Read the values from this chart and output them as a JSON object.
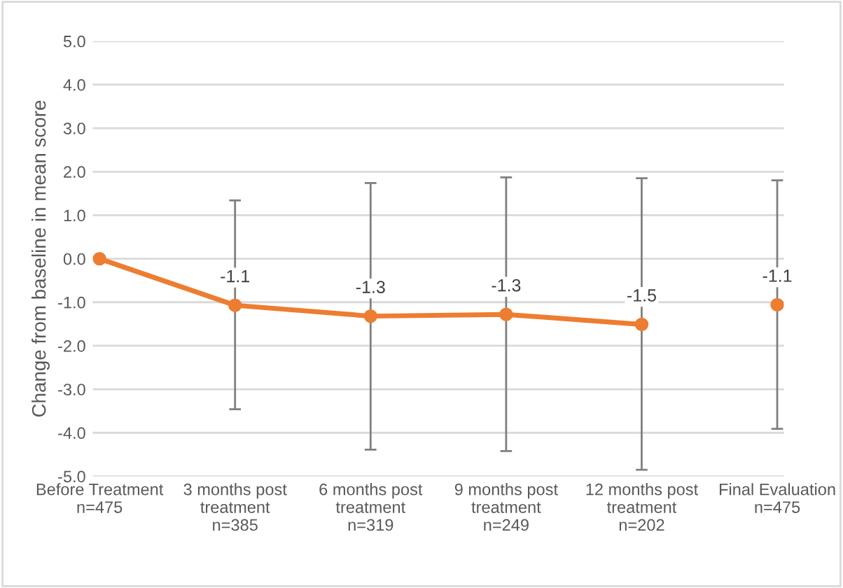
{
  "chart_data": {
    "type": "line",
    "ylabel": "Change from baseline in mean score",
    "categories": [
      "Before Treatment\nn=475",
      "3 months post\ntreatment\nn=385",
      "6 months post\ntreatment\nn=319",
      "9 months post\ntreatment\nn=249",
      "12 months post\ntreatment\nn=202",
      "Final Evaluation\nn=475"
    ],
    "series": [
      {
        "color": "#ed7d31",
        "values": [
          0.0,
          -1.07,
          -1.32,
          -1.28,
          -1.51,
          null
        ],
        "errors": [
          null,
          [
            -3.46,
            1.34
          ],
          [
            -4.39,
            1.74
          ],
          [
            -4.42,
            1.87
          ],
          [
            -4.85,
            1.85
          ],
          null
        ],
        "value_labels": [
          null,
          "-1.1",
          "-1.3",
          "-1.3",
          "-1.5",
          null
        ]
      },
      {
        "color": "#ed7d31",
        "values": [
          null,
          null,
          null,
          null,
          null,
          -1.06
        ],
        "errors": [
          null,
          null,
          null,
          null,
          null,
          [
            -3.91,
            1.8
          ]
        ],
        "value_labels": [
          null,
          null,
          null,
          null,
          null,
          "-1.1"
        ]
      }
    ],
    "ylim": [
      -5.0,
      5.0
    ],
    "yticks": [
      {
        "value": -5,
        "label": "-5.0"
      },
      {
        "value": -4,
        "label": "-4.0"
      },
      {
        "value": -3,
        "label": "-3.0"
      },
      {
        "value": -2,
        "label": "-2.0"
      },
      {
        "value": -1,
        "label": "-1.0"
      },
      {
        "value": 0,
        "label": "0.0"
      },
      {
        "value": 1,
        "label": "1.0"
      },
      {
        "value": 2,
        "label": "2.0"
      },
      {
        "value": 3,
        "label": "3.0"
      },
      {
        "value": 4,
        "label": "4.0"
      },
      {
        "value": 5,
        "label": "5.0"
      }
    ],
    "grid": "y",
    "marker": "circle",
    "line_style": "solid",
    "legend": false
  }
}
